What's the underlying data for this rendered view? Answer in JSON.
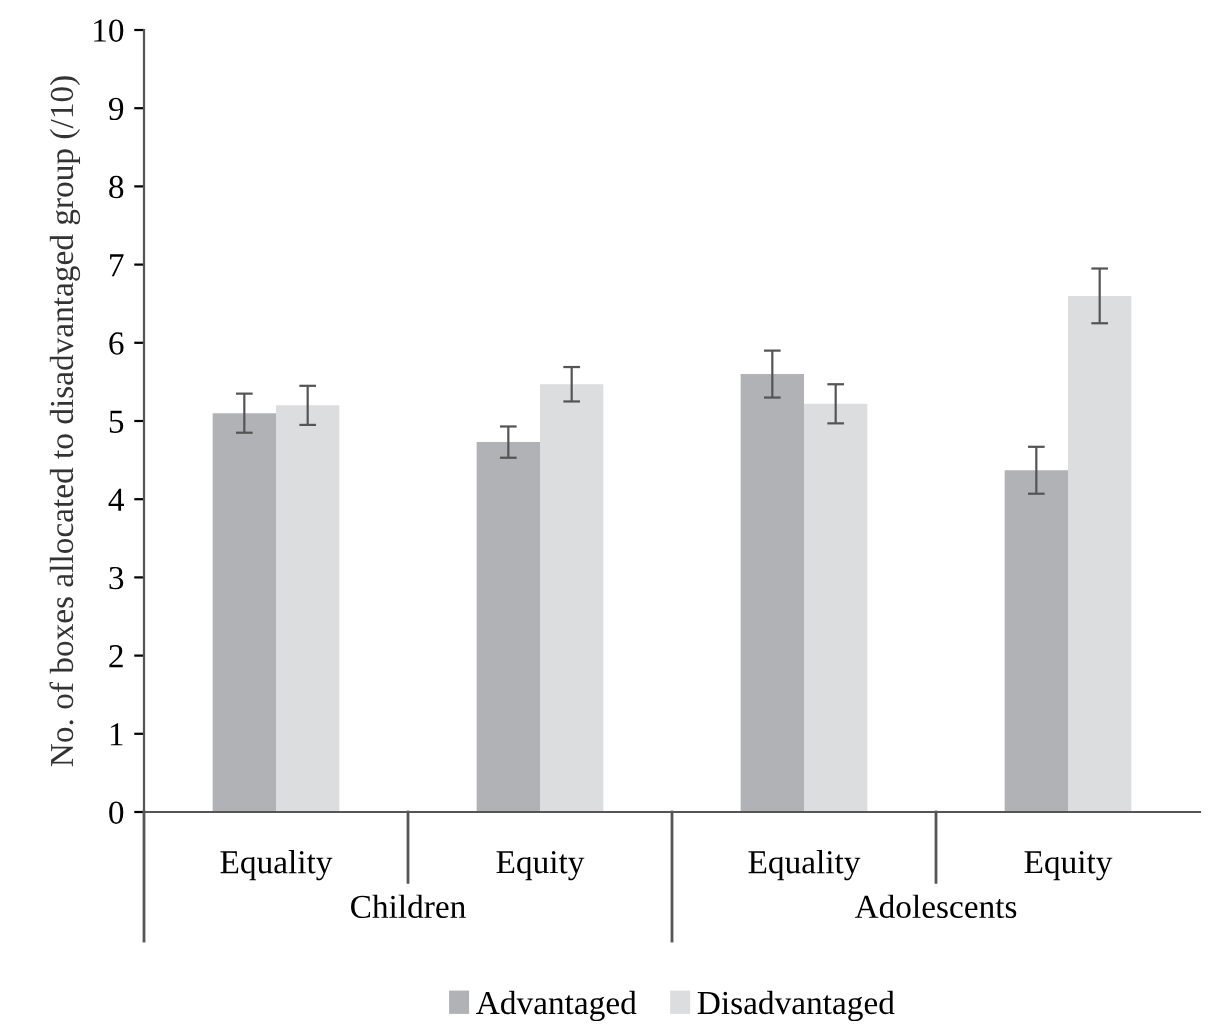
{
  "chart_data": {
    "type": "bar",
    "ylabel": "No. of boxes allocated to disadvantaged group (/10)",
    "categories": [
      "Equality",
      "Equity",
      "Equality",
      "Equity"
    ],
    "series": [
      {
        "name": "Advantaged",
        "color": "#b1b2b6",
        "values": [
          5.1,
          4.73,
          5.6,
          4.37
        ],
        "errors": [
          0.25,
          0.2,
          0.3,
          0.3
        ]
      },
      {
        "name": "Disadvantaged",
        "color": "#dcdddf",
        "values": [
          5.2,
          5.47,
          5.22,
          6.6
        ],
        "errors": [
          0.25,
          0.22,
          0.25,
          0.35
        ]
      }
    ],
    "annotations": [
      "Children",
      "Adolescents"
    ],
    "ylim": [
      0,
      10
    ],
    "yticks": [
      0,
      1,
      2,
      3,
      4,
      5,
      6,
      7,
      8,
      9,
      10
    ],
    "grid": false,
    "legend": "bottom"
  }
}
